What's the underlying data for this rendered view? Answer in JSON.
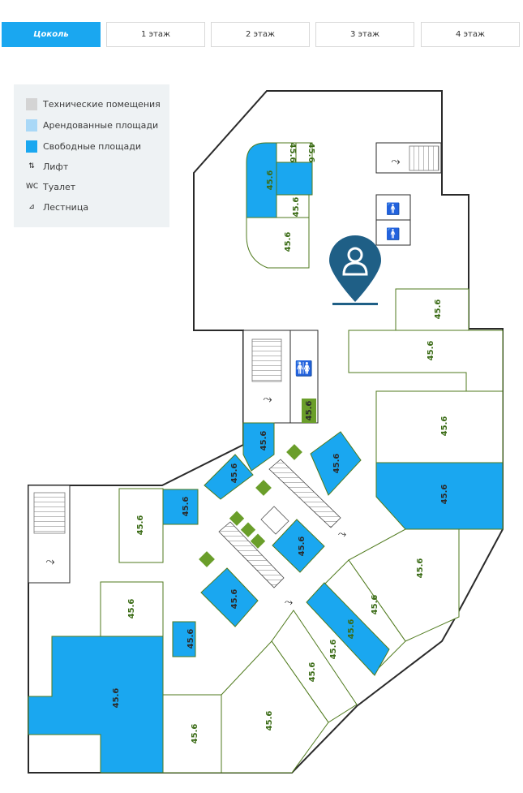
{
  "tabs": [
    {
      "label": "Цоколь",
      "active": true
    },
    {
      "label": "1 этаж",
      "active": false
    },
    {
      "label": "2 этаж",
      "active": false
    },
    {
      "label": "3 этаж",
      "active": false
    },
    {
      "label": "4 этаж",
      "active": false
    }
  ],
  "legend": {
    "technical": "Технические помещения",
    "rented": "Арендованные площади",
    "free": "Свободные площади",
    "lift": "Лифт",
    "toilet": "Туалет",
    "stairs": "Лестница",
    "lift_glyph": "⇅",
    "toilet_glyph": "WC",
    "stairs_glyph": "⊿"
  },
  "colors": {
    "tab_active": "#1aa7f0",
    "free": "#1aa7f0",
    "rented": "#a9d8f7",
    "technical": "#d4d4d4",
    "wall": "#2a2a2a",
    "room_outline": "#4f7a1d",
    "small_unit": "#6a9e2a",
    "marker": "#1f5f86"
  },
  "unit_area": "45.6",
  "icons": {
    "marker": "user-location-pin-icon",
    "stairs": "stairs-icon",
    "toilet": "toilet-icon",
    "lift": "lift-icon"
  }
}
